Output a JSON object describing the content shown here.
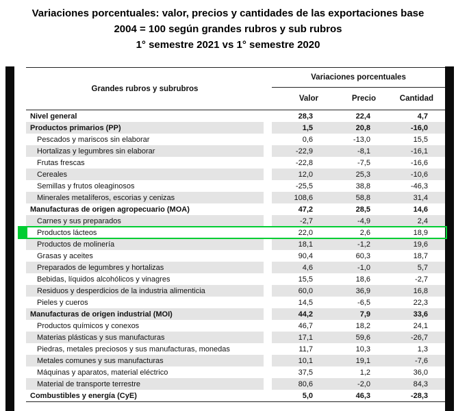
{
  "title": {
    "line1": "Variaciones porcentuales: valor, precios y cantidades de las exportaciones base",
    "line2": "2004 = 100 según grandes rubros y sub rubros",
    "line3": "1° semestre 2021 vs 1° semestre 2020"
  },
  "table": {
    "col_group_header": "Grandes rubros y subrubros",
    "span_header": "Variaciones porcentuales",
    "columns": [
      "Valor",
      "Precio",
      "Cantidad"
    ],
    "highlight_color": "#00cd32",
    "stripe_color": "#e4e4e4",
    "rows": [
      {
        "name": "Nivel general",
        "valor": "28,3",
        "precio": "22,4",
        "cantidad": "4,7",
        "bold": true
      },
      {
        "name": "Productos primarios (PP)",
        "valor": "1,5",
        "precio": "20,8",
        "cantidad": "-16,0",
        "bold": true
      },
      {
        "name": "Pescados y mariscos sin elaborar",
        "valor": "0,6",
        "precio": "-13,0",
        "cantidad": "15,5"
      },
      {
        "name": "Hortalizas y legumbres sin elaborar",
        "valor": "-22,9",
        "precio": "-8,1",
        "cantidad": "-16,1"
      },
      {
        "name": "Frutas frescas",
        "valor": "-22,8",
        "precio": "-7,5",
        "cantidad": "-16,6"
      },
      {
        "name": "Cereales",
        "valor": "12,0",
        "precio": "25,3",
        "cantidad": "-10,6"
      },
      {
        "name": "Semillas y frutos oleaginosos",
        "valor": "-25,5",
        "precio": "38,8",
        "cantidad": "-46,3"
      },
      {
        "name": "Minerales metalíferos, escorias y cenizas",
        "valor": "108,6",
        "precio": "58,8",
        "cantidad": "31,4"
      },
      {
        "name": "Manufacturas de origen agropecuario (MOA)",
        "valor": "47,2",
        "precio": "28,5",
        "cantidad": "14,6",
        "bold": true
      },
      {
        "name": "Carnes y sus preparados",
        "valor": "-2,7",
        "precio": "-4,9",
        "cantidad": "2,4"
      },
      {
        "name": "Productos lácteos",
        "valor": "22,0",
        "precio": "2,6",
        "cantidad": "18,9",
        "highlight": true
      },
      {
        "name": "Productos de molinería",
        "valor": "18,1",
        "precio": "-1,2",
        "cantidad": "19,6"
      },
      {
        "name": "Grasas y aceites",
        "valor": "90,4",
        "precio": "60,3",
        "cantidad": "18,7"
      },
      {
        "name": "Preparados de legumbres y hortalizas",
        "valor": "4,6",
        "precio": "-1,0",
        "cantidad": "5,7"
      },
      {
        "name": "Bebidas, líquidos alcohólicos y vinagres",
        "valor": "15,5",
        "precio": "18,6",
        "cantidad": "-2,7"
      },
      {
        "name": "Residuos y desperdicios de la industria alimenticia",
        "valor": "60,0",
        "precio": "36,9",
        "cantidad": "16,8"
      },
      {
        "name": "Pieles y cueros",
        "valor": "14,5",
        "precio": "-6,5",
        "cantidad": "22,3"
      },
      {
        "name": "Manufacturas de origen industrial (MOI)",
        "valor": "44,2",
        "precio": "7,9",
        "cantidad": "33,6",
        "bold": true
      },
      {
        "name": "Productos químicos y conexos",
        "valor": "46,7",
        "precio": "18,2",
        "cantidad": "24,1"
      },
      {
        "name": "Materias plásticas y sus manufacturas",
        "valor": "17,1",
        "precio": "59,6",
        "cantidad": "-26,7"
      },
      {
        "name": "Piedras, metales preciosos y sus manufacturas, monedas",
        "valor": "11,7",
        "precio": "10,3",
        "cantidad": "1,3"
      },
      {
        "name": "Metales comunes y sus manufacturas",
        "valor": "10,1",
        "precio": "19,1",
        "cantidad": "-7,6"
      },
      {
        "name": "Máquinas y aparatos, material eléctrico",
        "valor": "37,5",
        "precio": "1,2",
        "cantidad": "36,0"
      },
      {
        "name": "Material de transporte terrestre",
        "valor": "80,6",
        "precio": "-2,0",
        "cantidad": "84,3"
      },
      {
        "name": "Combustibles y energía (CyE)",
        "valor": "5,0",
        "precio": "46,3",
        "cantidad": "-28,3",
        "bold": true
      }
    ]
  },
  "chart_data": {
    "type": "table",
    "title": "Variaciones porcentuales: valor, precios y cantidades de las exportaciones base 2004 = 100 según grandes rubros y sub rubros — 1° semestre 2021 vs 1° semestre 2020",
    "columns": [
      "Grandes rubros y subrubros",
      "Valor",
      "Precio",
      "Cantidad"
    ],
    "highlighted_row": "Productos lácteos",
    "rows": [
      [
        "Nivel general",
        28.3,
        22.4,
        4.7
      ],
      [
        "Productos primarios (PP)",
        1.5,
        20.8,
        -16.0
      ],
      [
        "Pescados y mariscos sin elaborar",
        0.6,
        -13.0,
        15.5
      ],
      [
        "Hortalizas y legumbres sin elaborar",
        -22.9,
        -8.1,
        -16.1
      ],
      [
        "Frutas frescas",
        -22.8,
        -7.5,
        -16.6
      ],
      [
        "Cereales",
        12.0,
        25.3,
        -10.6
      ],
      [
        "Semillas y frutos oleaginosos",
        -25.5,
        38.8,
        -46.3
      ],
      [
        "Minerales metalíferos, escorias y cenizas",
        108.6,
        58.8,
        31.4
      ],
      [
        "Manufacturas de origen agropecuario (MOA)",
        47.2,
        28.5,
        14.6
      ],
      [
        "Carnes y sus preparados",
        -2.7,
        -4.9,
        2.4
      ],
      [
        "Productos lácteos",
        22.0,
        2.6,
        18.9
      ],
      [
        "Productos de molinería",
        18.1,
        -1.2,
        19.6
      ],
      [
        "Grasas y aceites",
        90.4,
        60.3,
        18.7
      ],
      [
        "Preparados de legumbres y hortalizas",
        4.6,
        -1.0,
        5.7
      ],
      [
        "Bebidas, líquidos alcohólicos y vinagres",
        15.5,
        18.6,
        -2.7
      ],
      [
        "Residuos y desperdicios de la industria alimenticia",
        60.0,
        36.9,
        16.8
      ],
      [
        "Pieles y cueros",
        14.5,
        -6.5,
        22.3
      ],
      [
        "Manufacturas de origen industrial (MOI)",
        44.2,
        7.9,
        33.6
      ],
      [
        "Productos químicos y conexos",
        46.7,
        18.2,
        24.1
      ],
      [
        "Materias plásticas y sus manufacturas",
        17.1,
        59.6,
        -26.7
      ],
      [
        "Piedras, metales preciosos y sus manufacturas, monedas",
        11.7,
        10.3,
        1.3
      ],
      [
        "Metales comunes y sus manufacturas",
        10.1,
        19.1,
        -7.6
      ],
      [
        "Máquinas y aparatos, material eléctrico",
        37.5,
        1.2,
        36.0
      ],
      [
        "Material de transporte terrestre",
        80.6,
        -2.0,
        84.3
      ],
      [
        "Combustibles y energía (CyE)",
        5.0,
        46.3,
        -28.3
      ]
    ]
  }
}
